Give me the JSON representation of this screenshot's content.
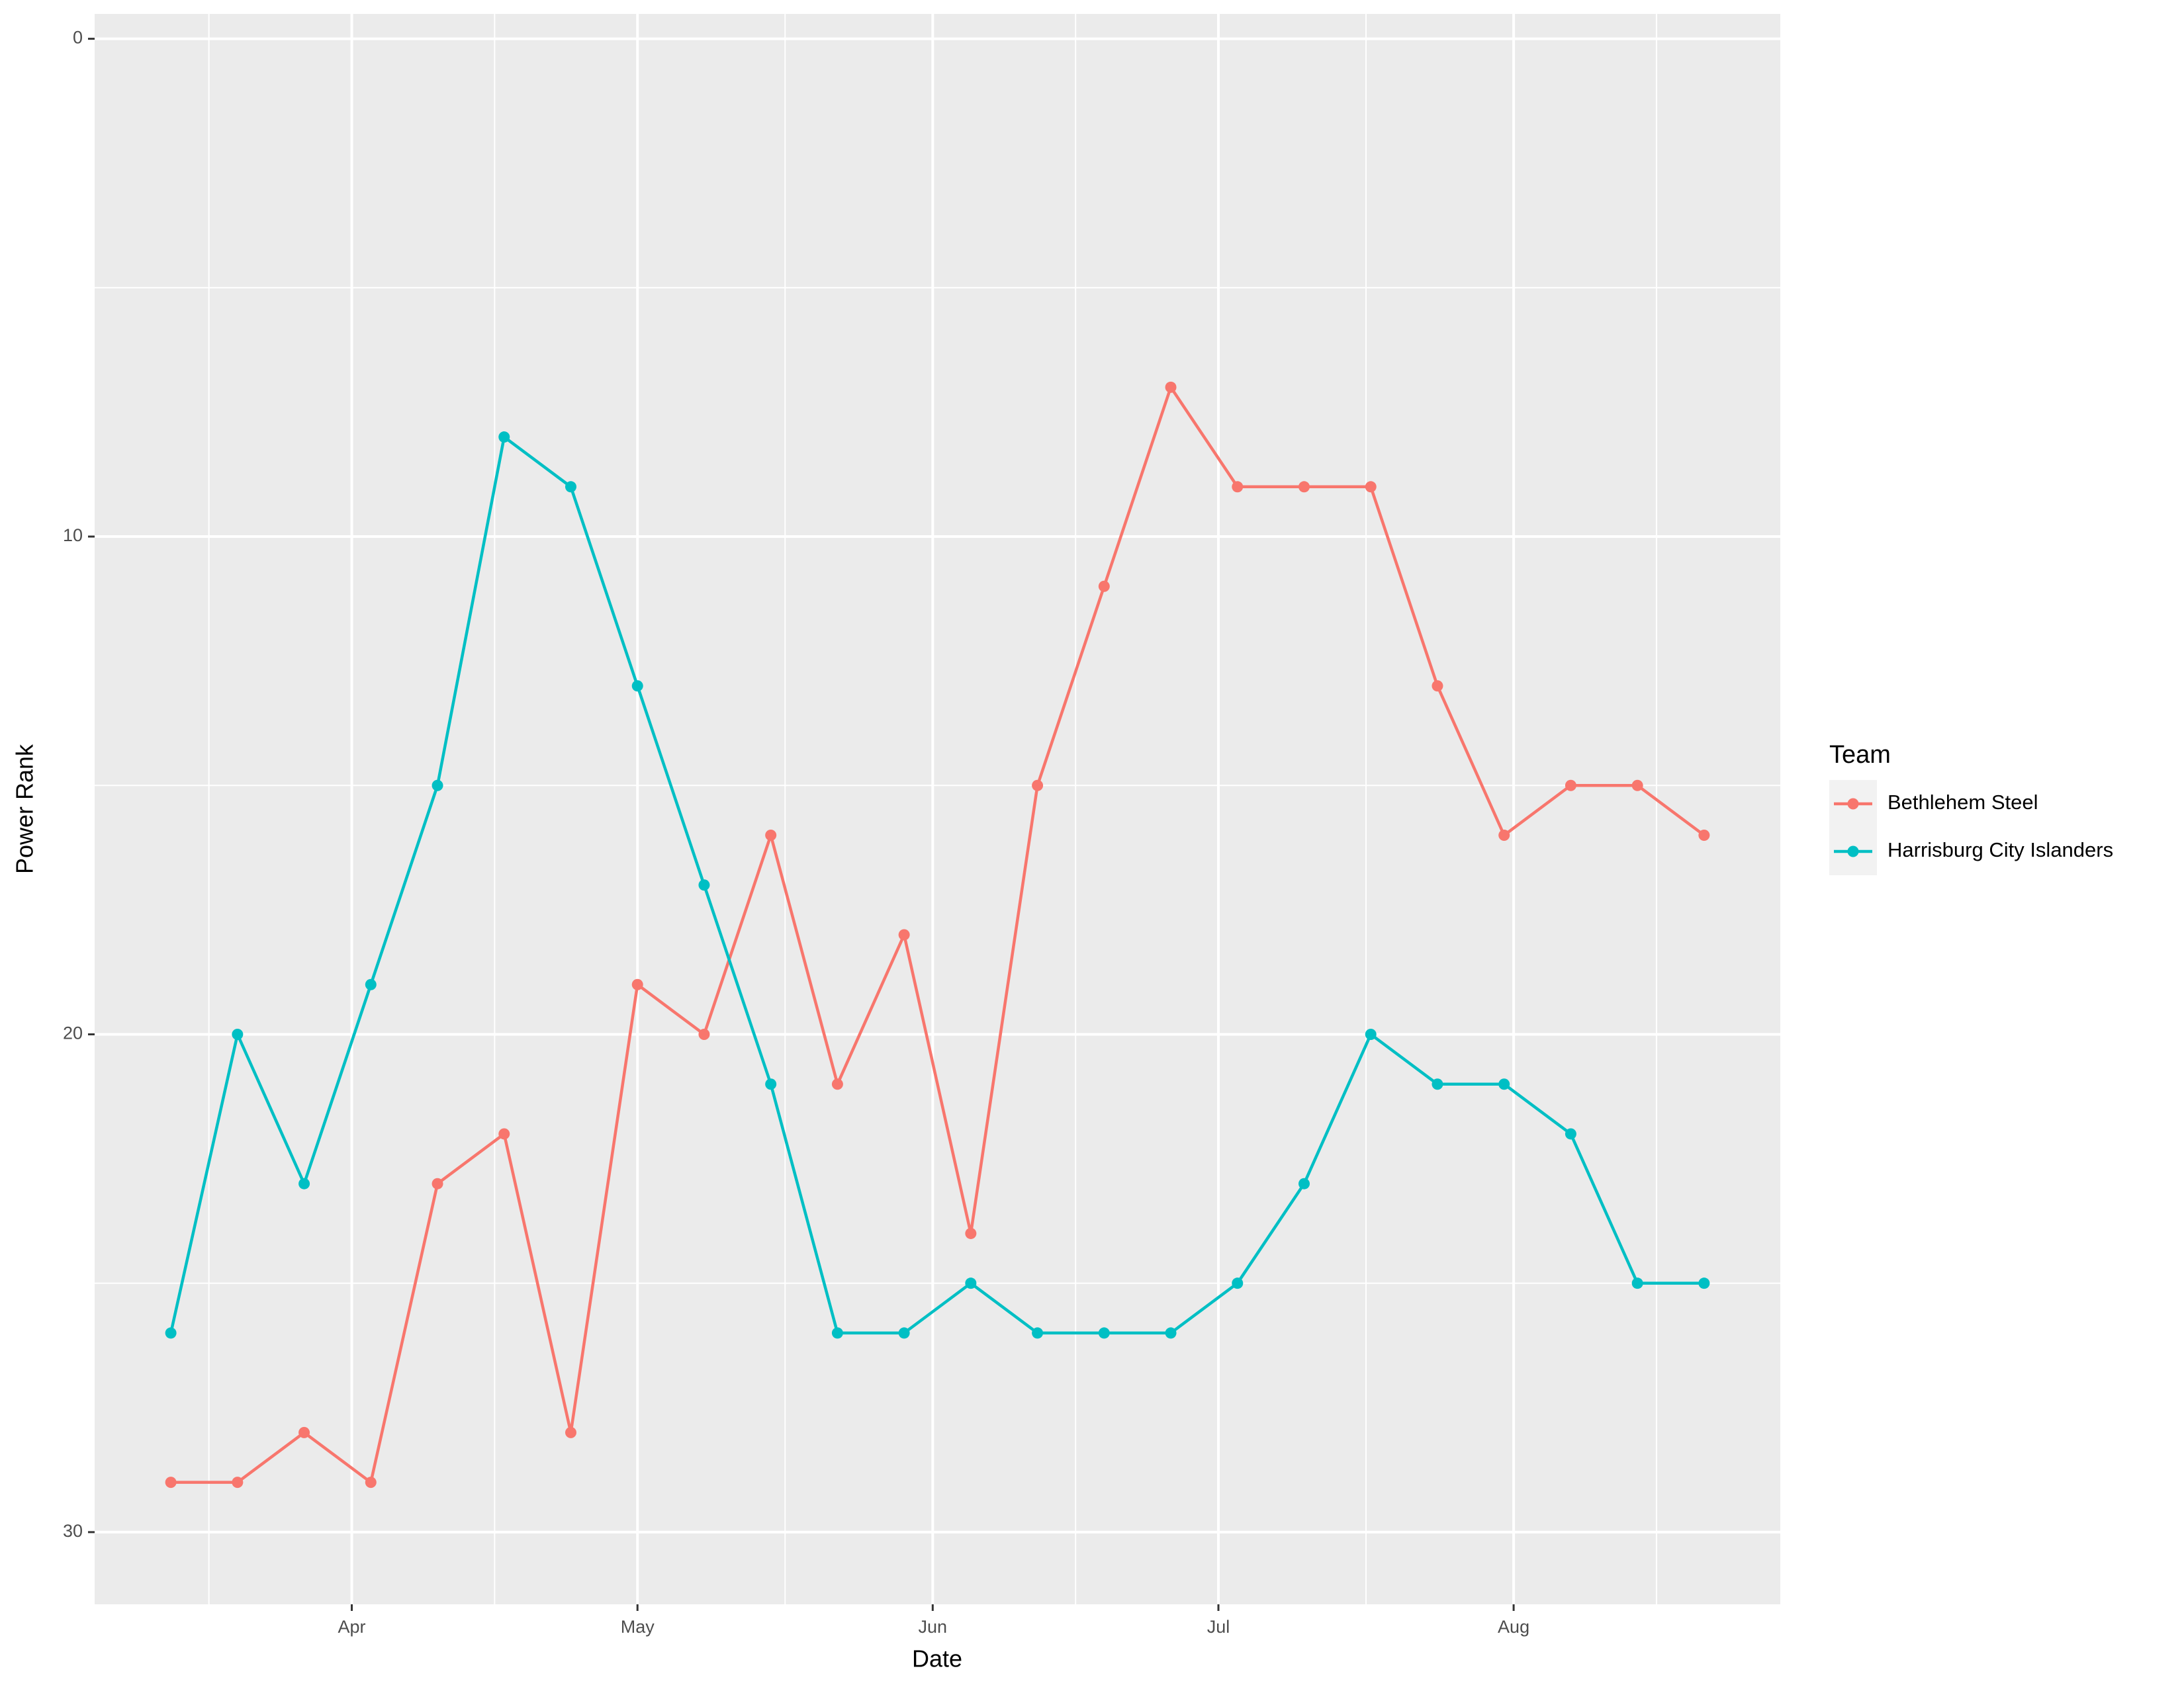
{
  "chart_data": {
    "type": "line",
    "x_label": "Date",
    "y_label": "Power Rank",
    "legend_title": "Team",
    "x": [
      "03-13",
      "03-20",
      "03-27",
      "04-03",
      "04-10",
      "04-17",
      "04-24",
      "05-01",
      "05-08",
      "05-15",
      "05-22",
      "05-29",
      "06-05",
      "06-12",
      "06-19",
      "06-26",
      "07-03",
      "07-10",
      "07-17",
      "07-24",
      "07-31",
      "08-07",
      "08-14",
      "08-21"
    ],
    "series": [
      {
        "name": "Bethlehem Steel",
        "color": "#F8766D",
        "values": [
          29,
          29,
          28,
          29,
          23,
          22,
          28,
          19,
          20,
          16,
          21,
          18,
          24,
          15,
          11,
          7,
          9,
          9,
          9,
          13,
          16,
          15,
          15,
          16
        ]
      },
      {
        "name": "Harrisburg City Islanders",
        "color": "#00BFC4",
        "values": [
          26,
          20,
          23,
          19,
          15,
          8,
          9,
          13,
          17,
          21,
          26,
          26,
          25,
          26,
          26,
          26,
          25,
          23,
          20,
          21,
          21,
          22,
          25,
          25
        ]
      }
    ],
    "xlim": [
      "03-05",
      "08-29"
    ],
    "xticks": [
      {
        "value": "04-01",
        "label": "Apr"
      },
      {
        "value": "05-01",
        "label": "May"
      },
      {
        "value": "06-01",
        "label": "Jun"
      },
      {
        "value": "07-01",
        "label": "Jul"
      },
      {
        "value": "08-01",
        "label": "Aug"
      }
    ],
    "ylim": [
      -0.5,
      31.45
    ],
    "y_reversed": true,
    "yticks": [
      0,
      10,
      20,
      30
    ],
    "grid": true,
    "legend_position": "right"
  }
}
